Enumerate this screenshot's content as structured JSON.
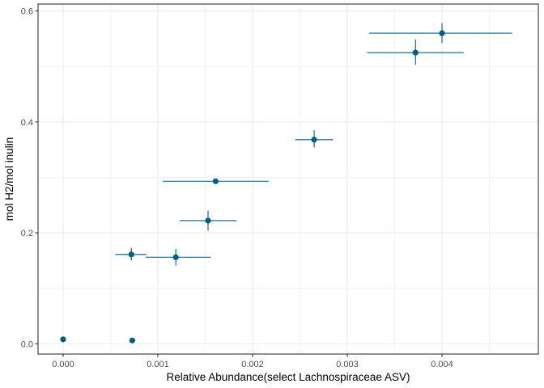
{
  "chart_data": {
    "type": "scatter",
    "title": "",
    "xlabel": "Relative Abundance(select Lachnospiraceae ASV)",
    "ylabel": "mol H2/mol inulin",
    "xlim": [
      -0.0002647,
      0.005017
    ],
    "ylim": [
      -0.0185,
      0.6125
    ],
    "x_ticks": [
      0.0,
      0.001,
      0.002,
      0.003,
      0.004
    ],
    "x_tick_labels": [
      "0.000",
      "0.001",
      "0.002",
      "0.003",
      "0.004"
    ],
    "y_ticks": [
      0.0,
      0.2,
      0.4,
      0.6
    ],
    "y_tick_labels": [
      "0.0",
      "0.2",
      "0.4",
      "0.6"
    ],
    "grid": true,
    "legend": "none",
    "colors": {
      "point": "#005f7f",
      "grid": "#ebebeb",
      "panel_border": "#333333",
      "tick_label": "#4d4d4d"
    },
    "points": [
      {
        "x": 0.0,
        "y": 0.008,
        "xmin": 0.0,
        "xmax": 0.0,
        "ymin": 0.008,
        "ymax": 0.008
      },
      {
        "x": 0.00073,
        "y": 0.006,
        "xmin": 0.00073,
        "xmax": 0.00073,
        "ymin": 0.006,
        "ymax": 0.006
      },
      {
        "x": 0.00072,
        "y": 0.161,
        "xmin": 0.00055,
        "xmax": 0.00088,
        "ymin": 0.15,
        "ymax": 0.173
      },
      {
        "x": 0.00119,
        "y": 0.156,
        "xmin": 0.00087,
        "xmax": 0.00156,
        "ymin": 0.141,
        "ymax": 0.171
      },
      {
        "x": 0.00153,
        "y": 0.222,
        "xmin": 0.00123,
        "xmax": 0.00183,
        "ymin": 0.204,
        "ymax": 0.24
      },
      {
        "x": 0.00161,
        "y": 0.293,
        "xmin": 0.00105,
        "xmax": 0.00217,
        "ymin": 0.293,
        "ymax": 0.293
      },
      {
        "x": 0.00265,
        "y": 0.368,
        "xmin": 0.00245,
        "xmax": 0.00285,
        "ymin": 0.354,
        "ymax": 0.385
      },
      {
        "x": 0.00372,
        "y": 0.525,
        "xmin": 0.00321,
        "xmax": 0.00423,
        "ymin": 0.503,
        "ymax": 0.549
      },
      {
        "x": 0.004,
        "y": 0.56,
        "xmin": 0.00323,
        "xmax": 0.00474,
        "ymin": 0.542,
        "ymax": 0.578
      }
    ]
  }
}
